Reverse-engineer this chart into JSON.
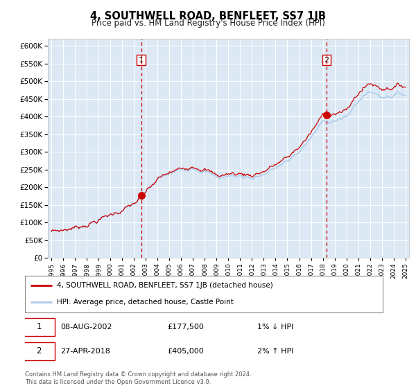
{
  "title": "4, SOUTHWELL ROAD, BENFLEET, SS7 1JB",
  "subtitle": "Price paid vs. HM Land Registry's House Price Index (HPI)",
  "legend_line1": "4, SOUTHWELL ROAD, BENFLEET, SS7 1JB (detached house)",
  "legend_line2": "HPI: Average price, detached house, Castle Point",
  "transaction1_date": "08-AUG-2002",
  "transaction1_price": 177500,
  "transaction1_note": "1% ↓ HPI",
  "transaction2_date": "27-APR-2018",
  "transaction2_price": 405000,
  "transaction2_note": "2% ↑ HPI",
  "footer": "Contains HM Land Registry data © Crown copyright and database right 2024.\nThis data is licensed under the Open Government Licence v3.0.",
  "ylim": [
    0,
    620000
  ],
  "yticks": [
    0,
    50000,
    100000,
    150000,
    200000,
    250000,
    300000,
    350000,
    400000,
    450000,
    500000,
    550000,
    600000
  ],
  "background_color": "#dce9f5",
  "hpi_color": "#a8c8e8",
  "price_color": "#cc0000",
  "vline_color": "#cc0000",
  "grid_color": "#ffffff",
  "t1_year": 2002.604,
  "t2_year": 2018.32,
  "t1_price": 177500,
  "t2_price": 405000
}
